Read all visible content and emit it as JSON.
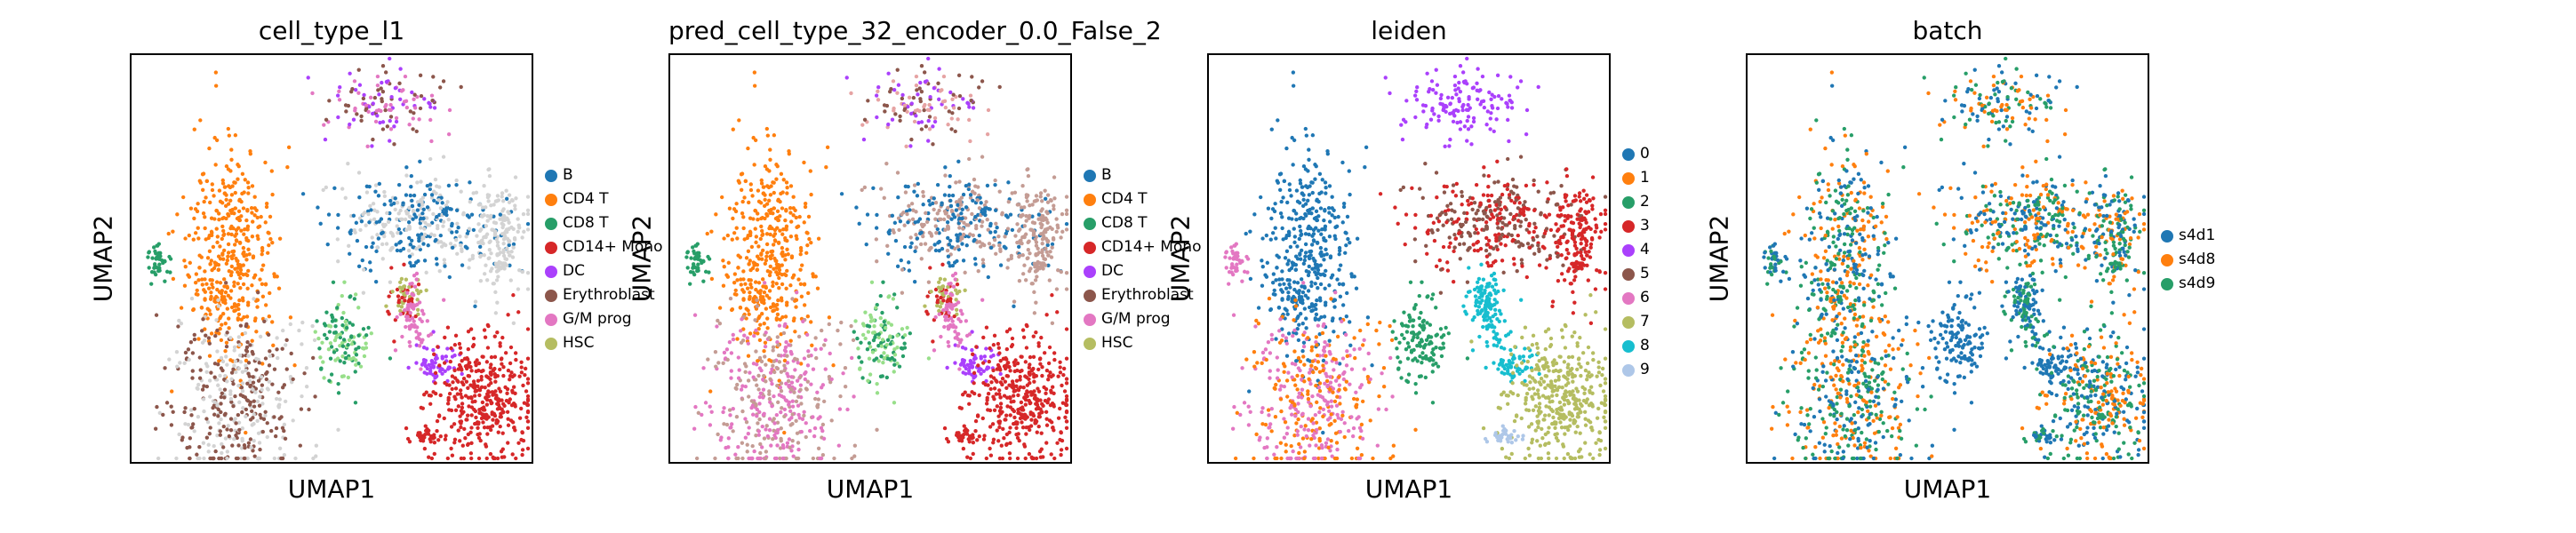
{
  "panels": [
    {
      "title": "cell_type_l1",
      "xlabel": "UMAP1",
      "ylabel": "UMAP2",
      "legend": [
        {
          "label": "B",
          "color": "#1f77b4"
        },
        {
          "label": "CD4 T",
          "color": "#ff7f0e"
        },
        {
          "label": "CD8 T",
          "color": "#279e68"
        },
        {
          "label": "CD14+ Mono",
          "color": "#d62728"
        },
        {
          "label": "DC",
          "color": "#aa40fc"
        },
        {
          "label": "Erythroblast",
          "color": "#8c564b"
        },
        {
          "label": "G/M prog",
          "color": "#e377c2"
        },
        {
          "label": "HSC",
          "color": "#b5bd61"
        }
      ]
    },
    {
      "title": "pred_cell_type_32_encoder_0.0_False_2",
      "xlabel": "UMAP1",
      "ylabel": "UMAP2",
      "legend": [
        {
          "label": "B",
          "color": "#1f77b4"
        },
        {
          "label": "CD4 T",
          "color": "#ff7f0e"
        },
        {
          "label": "CD8 T",
          "color": "#279e68"
        },
        {
          "label": "CD14+ Mono",
          "color": "#d62728"
        },
        {
          "label": "DC",
          "color": "#aa40fc"
        },
        {
          "label": "Erythroblast",
          "color": "#8c564b"
        },
        {
          "label": "G/M prog",
          "color": "#e377c2"
        },
        {
          "label": "HSC",
          "color": "#b5bd61"
        }
      ]
    },
    {
      "title": "leiden",
      "xlabel": "UMAP1",
      "ylabel": "UMAP2",
      "legend": [
        {
          "label": "0",
          "color": "#1f77b4"
        },
        {
          "label": "1",
          "color": "#ff7f0e"
        },
        {
          "label": "2",
          "color": "#279e68"
        },
        {
          "label": "3",
          "color": "#d62728"
        },
        {
          "label": "4",
          "color": "#aa40fc"
        },
        {
          "label": "5",
          "color": "#8c564b"
        },
        {
          "label": "6",
          "color": "#e377c2"
        },
        {
          "label": "7",
          "color": "#b5bd61"
        },
        {
          "label": "8",
          "color": "#17becf"
        },
        {
          "label": "9",
          "color": "#aec7e8"
        }
      ]
    },
    {
      "title": "batch",
      "xlabel": "UMAP1",
      "ylabel": "UMAP2",
      "legend": [
        {
          "label": "s4d1",
          "color": "#1f77b4"
        },
        {
          "label": "s4d8",
          "color": "#ff7f0e"
        },
        {
          "label": "s4d9",
          "color": "#279e68"
        }
      ]
    }
  ],
  "chart_data": [
    {
      "type": "scatter",
      "title": "cell_type_l1",
      "xlabel": "UMAP1",
      "ylabel": "UMAP2",
      "grid": false,
      "legend_position": "right",
      "series": [
        {
          "name": "B"
        },
        {
          "name": "CD4 T"
        },
        {
          "name": "CD8 T"
        },
        {
          "name": "CD14+ Mono"
        },
        {
          "name": "DC"
        },
        {
          "name": "Erythroblast"
        },
        {
          "name": "G/M prog"
        },
        {
          "name": "HSC"
        }
      ]
    },
    {
      "type": "scatter",
      "title": "pred_cell_type_32_encoder_0.0_False_2",
      "xlabel": "UMAP1",
      "ylabel": "UMAP2",
      "grid": false,
      "legend_position": "right",
      "series": [
        {
          "name": "B"
        },
        {
          "name": "CD4 T"
        },
        {
          "name": "CD8 T"
        },
        {
          "name": "CD14+ Mono"
        },
        {
          "name": "DC"
        },
        {
          "name": "Erythroblast"
        },
        {
          "name": "G/M prog"
        },
        {
          "name": "HSC"
        }
      ]
    },
    {
      "type": "scatter",
      "title": "leiden",
      "xlabel": "UMAP1",
      "ylabel": "UMAP2",
      "grid": false,
      "legend_position": "right",
      "series": [
        {
          "name": "0"
        },
        {
          "name": "1"
        },
        {
          "name": "2"
        },
        {
          "name": "3"
        },
        {
          "name": "4"
        },
        {
          "name": "5"
        },
        {
          "name": "6"
        },
        {
          "name": "7"
        },
        {
          "name": "8"
        },
        {
          "name": "9"
        }
      ]
    },
    {
      "type": "scatter",
      "title": "batch",
      "xlabel": "UMAP1",
      "ylabel": "UMAP2",
      "grid": false,
      "legend_position": "right",
      "series": [
        {
          "name": "s4d1"
        },
        {
          "name": "s4d8"
        },
        {
          "name": "s4d9"
        }
      ]
    }
  ]
}
